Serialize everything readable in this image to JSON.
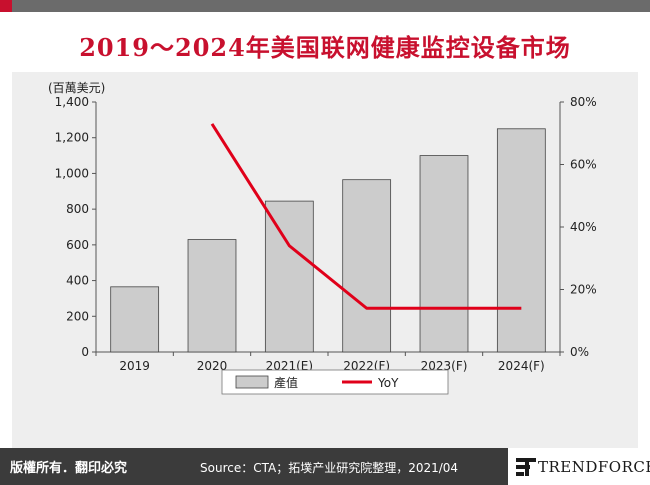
{
  "header": {
    "title": "2019～2024年美国联网健康监控设备市场"
  },
  "footer": {
    "copyright": "版權所有．翻印必究",
    "source": "Source：CTA；拓墣产业研究院整理，2021/04",
    "brand": "TRENDFORCE"
  },
  "colors": {
    "accent": "#c8102e",
    "bar": "#cccccc",
    "line": "#e0001a"
  },
  "chart_data": {
    "type": "bar",
    "unit_label": "(百萬美元)",
    "categories": [
      "2019",
      "2020",
      "2021(E)",
      "2022(F)",
      "2023(F)",
      "2024(F)"
    ],
    "series": [
      {
        "name": "產值",
        "type": "bar",
        "axis": "left",
        "values": [
          365,
          630,
          845,
          965,
          1100,
          1250
        ]
      },
      {
        "name": "YoY",
        "type": "line",
        "axis": "right",
        "values": [
          null,
          0.73,
          0.34,
          0.14,
          0.14,
          0.14
        ]
      }
    ],
    "ylim_left": [
      0,
      1400
    ],
    "yticks_left": [
      "0",
      "200",
      "400",
      "600",
      "800",
      "1,000",
      "1,200",
      "1,400"
    ],
    "ylim_right": [
      0,
      0.8
    ],
    "yticks_right": [
      "0%",
      "20%",
      "40%",
      "60%",
      "80%"
    ],
    "legend_position": "bottom",
    "grid": false
  }
}
